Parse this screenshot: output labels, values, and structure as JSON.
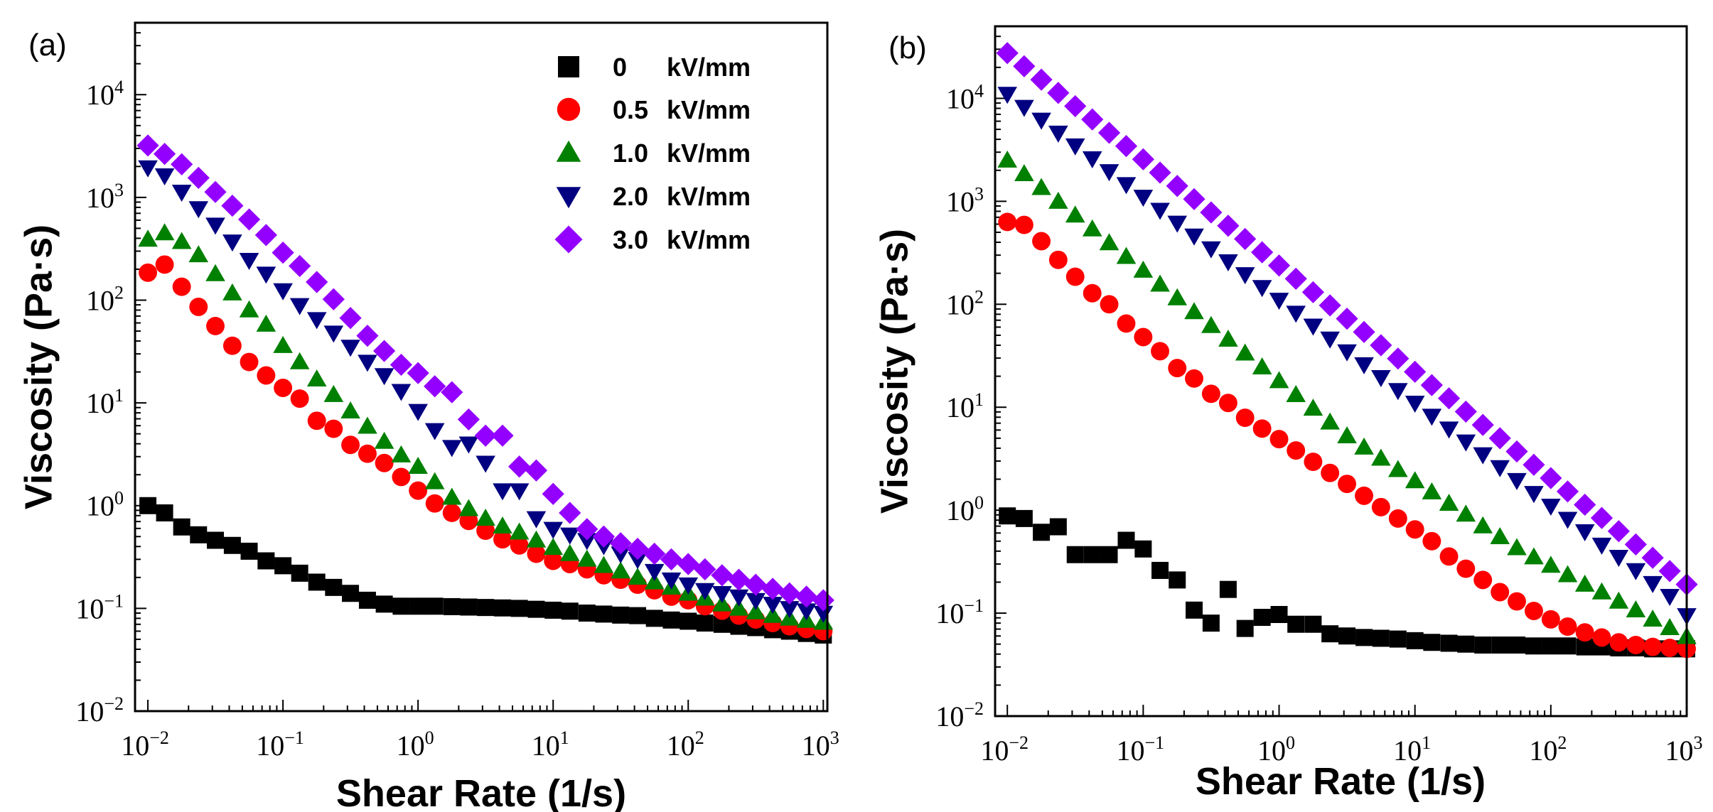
{
  "chart_data": [
    {
      "type": "scatter",
      "panel_label": "(a)",
      "xlabel": "Shear Rate (1/s)",
      "ylabel": "Viscosity (Pa·s)",
      "xscale": "log",
      "yscale": "log",
      "xlim": [
        0.008,
        1070
      ],
      "ylim": [
        0.01,
        50000
      ],
      "xticks": [
        {
          "base": "10",
          "exp": "−2"
        },
        {
          "base": "10",
          "exp": "−1"
        },
        {
          "base": "10",
          "exp": "0"
        },
        {
          "base": "10",
          "exp": "1"
        },
        {
          "base": "10",
          "exp": "2"
        },
        {
          "base": "10",
          "exp": "3"
        }
      ],
      "yticks": [
        {
          "base": "10",
          "exp": "−2"
        },
        {
          "base": "10",
          "exp": "−1"
        },
        {
          "base": "10",
          "exp": "0"
        },
        {
          "base": "10",
          "exp": "1"
        },
        {
          "base": "10",
          "exp": "2"
        },
        {
          "base": "10",
          "exp": "3"
        },
        {
          "base": "10",
          "exp": "4"
        }
      ],
      "grid": false,
      "legend_position": "top-right",
      "x": [
        0.01,
        0.0133,
        0.0178,
        0.0237,
        0.0316,
        0.0422,
        0.0562,
        0.075,
        0.1,
        0.133,
        0.178,
        0.237,
        0.316,
        0.422,
        0.562,
        0.75,
        1,
        1.33,
        1.78,
        2.37,
        3.16,
        4.22,
        5.62,
        7.5,
        10,
        13.3,
        17.8,
        23.7,
        31.6,
        42.2,
        56.2,
        75,
        100,
        133,
        178,
        237,
        316,
        422,
        562,
        750,
        1000
      ],
      "series": [
        {
          "name": "0 kV/mm",
          "marker": "square",
          "color": "#000000",
          "values": [
            1.0,
            0.85,
            0.62,
            0.52,
            0.46,
            0.41,
            0.36,
            0.29,
            0.26,
            0.22,
            0.18,
            0.16,
            0.14,
            0.12,
            0.11,
            0.105,
            0.105,
            0.105,
            0.104,
            0.103,
            0.102,
            0.101,
            0.1,
            0.098,
            0.096,
            0.094,
            0.09,
            0.088,
            0.086,
            0.085,
            0.08,
            0.077,
            0.075,
            0.072,
            0.07,
            0.067,
            0.065,
            0.062,
            0.06,
            0.057,
            0.055
          ]
        },
        {
          "name": "0.5 kV/mm",
          "marker": "circle",
          "color": "#ff0000",
          "values": [
            185,
            222,
            135,
            86,
            56,
            36,
            25,
            18.5,
            14,
            11,
            6.7,
            5.6,
            3.9,
            3.2,
            2.6,
            1.9,
            1.4,
            1.05,
            0.85,
            0.71,
            0.57,
            0.47,
            0.41,
            0.34,
            0.29,
            0.27,
            0.24,
            0.21,
            0.19,
            0.17,
            0.15,
            0.13,
            0.12,
            0.105,
            0.095,
            0.085,
            0.078,
            0.072,
            0.067,
            0.063,
            0.06
          ]
        },
        {
          "name": "1.0 kV/mm",
          "marker": "triangle-up",
          "color": "#008000",
          "values": [
            390,
            450,
            370,
            275,
            180,
            117,
            80,
            58,
            36,
            25,
            17,
            12,
            8.3,
            5.9,
            4.2,
            3.1,
            2.4,
            1.7,
            1.2,
            0.93,
            0.75,
            0.63,
            0.55,
            0.46,
            0.39,
            0.34,
            0.3,
            0.26,
            0.23,
            0.2,
            0.18,
            0.16,
            0.14,
            0.125,
            0.11,
            0.1,
            0.092,
            0.085,
            0.08,
            0.076,
            0.073
          ]
        },
        {
          "name": "2.0 kV/mm",
          "marker": "triangle-down",
          "color": "#000080",
          "values": [
            1950,
            1630,
            1130,
            780,
            540,
            370,
            245,
            180,
            124,
            89,
            65,
            48,
            35,
            25,
            18.5,
            13,
            8.3,
            5.4,
            3.7,
            4.0,
            2.6,
            1.4,
            1.4,
            0.75,
            0.59,
            0.52,
            0.46,
            0.41,
            0.34,
            0.3,
            0.23,
            0.19,
            0.17,
            0.15,
            0.14,
            0.13,
            0.12,
            0.11,
            0.1,
            0.095,
            0.09
          ]
        },
        {
          "name": "3.0 kV/mm",
          "marker": "diamond",
          "color": "#9400ff",
          "values": [
            3200,
            2650,
            2100,
            1550,
            1130,
            830,
            610,
            430,
            290,
            215,
            150,
            102,
            67,
            45,
            32,
            23.5,
            19.5,
            14.5,
            12.7,
            6.9,
            4.8,
            4.8,
            2.4,
            2.2,
            1.3,
            0.85,
            0.59,
            0.5,
            0.43,
            0.38,
            0.34,
            0.3,
            0.27,
            0.24,
            0.21,
            0.19,
            0.17,
            0.155,
            0.14,
            0.13,
            0.12
          ]
        }
      ]
    },
    {
      "type": "scatter",
      "panel_label": "(b)",
      "xlabel": "Shear Rate (1/s)",
      "ylabel": "Viscosity (Pa·s)",
      "xscale": "log",
      "yscale": "log",
      "xlim": [
        0.0081,
        1000
      ],
      "ylim": [
        0.01,
        50000
      ],
      "xticks": [
        {
          "base": "10",
          "exp": "−2"
        },
        {
          "base": "10",
          "exp": "−1"
        },
        {
          "base": "10",
          "exp": "0"
        },
        {
          "base": "10",
          "exp": "1"
        },
        {
          "base": "10",
          "exp": "2"
        },
        {
          "base": "10",
          "exp": "3"
        }
      ],
      "yticks": [
        {
          "base": "10",
          "exp": "−2"
        },
        {
          "base": "10",
          "exp": "−1"
        },
        {
          "base": "10",
          "exp": "0"
        },
        {
          "base": "10",
          "exp": "1"
        },
        {
          "base": "10",
          "exp": "2"
        },
        {
          "base": "10",
          "exp": "3"
        },
        {
          "base": "10",
          "exp": "4"
        }
      ],
      "grid": false,
      "x": [
        0.01,
        0.0133,
        0.0178,
        0.0237,
        0.0316,
        0.0422,
        0.0562,
        0.075,
        0.1,
        0.133,
        0.178,
        0.237,
        0.316,
        0.422,
        0.562,
        0.75,
        1,
        1.33,
        1.78,
        2.37,
        3.16,
        4.22,
        5.62,
        7.5,
        10,
        13.3,
        17.8,
        23.7,
        31.6,
        42.2,
        56.2,
        75,
        100,
        133,
        178,
        237,
        316,
        422,
        562,
        750,
        1000
      ],
      "series": [
        {
          "name": "0 kV/mm",
          "marker": "square",
          "color": "#000000",
          "values": [
            0.88,
            0.83,
            0.61,
            0.69,
            0.37,
            0.37,
            0.37,
            0.51,
            0.42,
            0.26,
            0.21,
            0.107,
            0.08,
            0.17,
            0.071,
            0.091,
            0.097,
            0.078,
            0.078,
            0.063,
            0.06,
            0.058,
            0.057,
            0.056,
            0.054,
            0.052,
            0.051,
            0.05,
            0.049,
            0.049,
            0.049,
            0.048,
            0.048,
            0.048,
            0.047,
            0.047,
            0.046,
            0.046,
            0.045,
            0.045,
            0.045
          ]
        },
        {
          "name": "0.5 kV/mm",
          "marker": "circle",
          "color": "#ff0000",
          "values": [
            630,
            590,
            410,
            270,
            185,
            128,
            100,
            65,
            48,
            35,
            24,
            19,
            13.5,
            11,
            7.9,
            6.2,
            4.9,
            3.8,
            2.95,
            2.3,
            1.8,
            1.38,
            1.07,
            0.83,
            0.65,
            0.5,
            0.355,
            0.27,
            0.21,
            0.16,
            0.13,
            0.105,
            0.087,
            0.074,
            0.065,
            0.058,
            0.052,
            0.049,
            0.047,
            0.046,
            0.045
          ]
        },
        {
          "name": "1.0 kV/mm",
          "marker": "triangle-up",
          "color": "#008000",
          "values": [
            2500,
            1845,
            1355,
            995,
            731,
            537,
            394,
            290,
            213,
            156,
            115,
            84.3,
            61.9,
            45.5,
            33.4,
            24.5,
            18.0,
            13.2,
            9.73,
            7.14,
            5.25,
            4.08,
            3.18,
            2.47,
            1.92,
            1.5,
            1.16,
            0.91,
            0.7,
            0.55,
            0.43,
            0.35,
            0.29,
            0.235,
            0.19,
            0.16,
            0.13,
            0.107,
            0.087,
            0.072,
            0.059
          ]
        },
        {
          "name": "2.0 kV/mm",
          "marker": "triangle-down",
          "color": "#000080",
          "values": [
            11000,
            8220,
            6170,
            4620,
            3470,
            2600,
            1950,
            1460,
            1100,
            822,
            617,
            462,
            347,
            260,
            195,
            146,
            110,
            82.2,
            61.7,
            46.2,
            34.7,
            26.0,
            19.5,
            14.6,
            11.0,
            8.22,
            6.17,
            4.62,
            3.47,
            2.6,
            1.95,
            1.46,
            1.1,
            0.82,
            0.62,
            0.46,
            0.35,
            0.26,
            0.195,
            0.146,
            0.095
          ]
        },
        {
          "name": "3.0 kV/mm",
          "marker": "diamond",
          "color": "#9400ff",
          "values": [
            27500,
            20500,
            15200,
            11300,
            8400,
            6240,
            4630,
            3440,
            2560,
            1900,
            1410,
            1050,
            780,
            579,
            431,
            320,
            238,
            177,
            131,
            97.5,
            72.4,
            53.8,
            40.0,
            29.7,
            22.1,
            16.4,
            12.2,
            9.06,
            6.73,
            5.0,
            3.72,
            2.76,
            2.05,
            1.52,
            1.13,
            0.84,
            0.625,
            0.465,
            0.345,
            0.256,
            0.19
          ]
        }
      ]
    }
  ]
}
